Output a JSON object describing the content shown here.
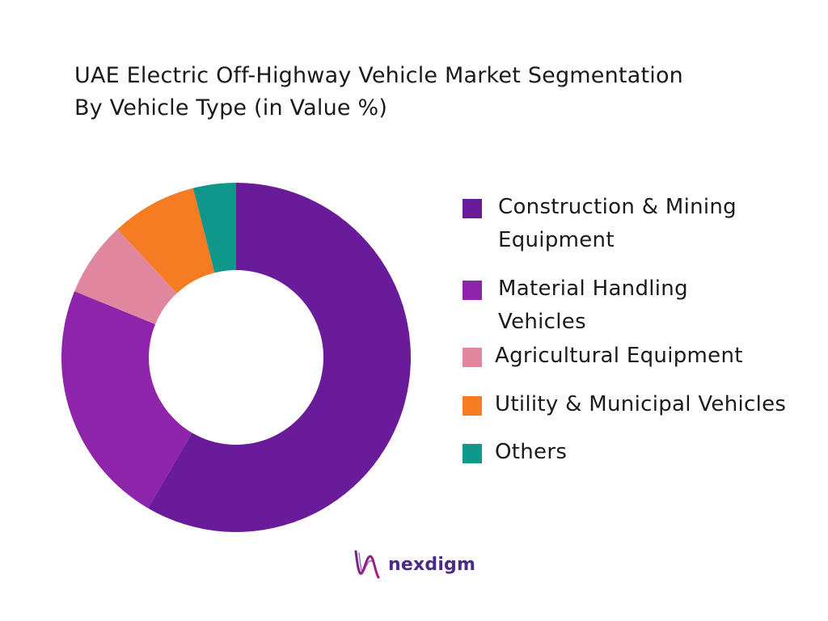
{
  "header": {
    "title_line1": "UAE Electric Off-Highway Vehicle Market Segmentation",
    "title_line2": "By Vehicle Type (in Value %)"
  },
  "chart_data": {
    "type": "pie",
    "donut": true,
    "categories": [
      "Construction & Mining Equipment",
      "Material Handling Vehicles",
      "Agricultural Equipment",
      "Utility & Municipal Vehicles",
      "Others"
    ],
    "values": [
      59,
      23,
      7,
      8,
      4
    ],
    "colors": [
      "#6a1b9a",
      "#8e24aa",
      "#e0879f",
      "#f57c22",
      "#0e978a"
    ],
    "legend_position": "right",
    "legend": [
      {
        "line1": "Construction & Mining",
        "line2": "Equipment"
      },
      {
        "line1": "Material Handling",
        "line2": "Vehicles"
      },
      {
        "line1": "Agricultural Equipment",
        "line2": ""
      },
      {
        "line1": "Utility & Municipal Vehicles",
        "line2": ""
      },
      {
        "line1": "Others",
        "line2": ""
      }
    ]
  },
  "brand": {
    "name": "nexdigm",
    "logo_icon": "nexdigm-wave-logo-icon"
  }
}
